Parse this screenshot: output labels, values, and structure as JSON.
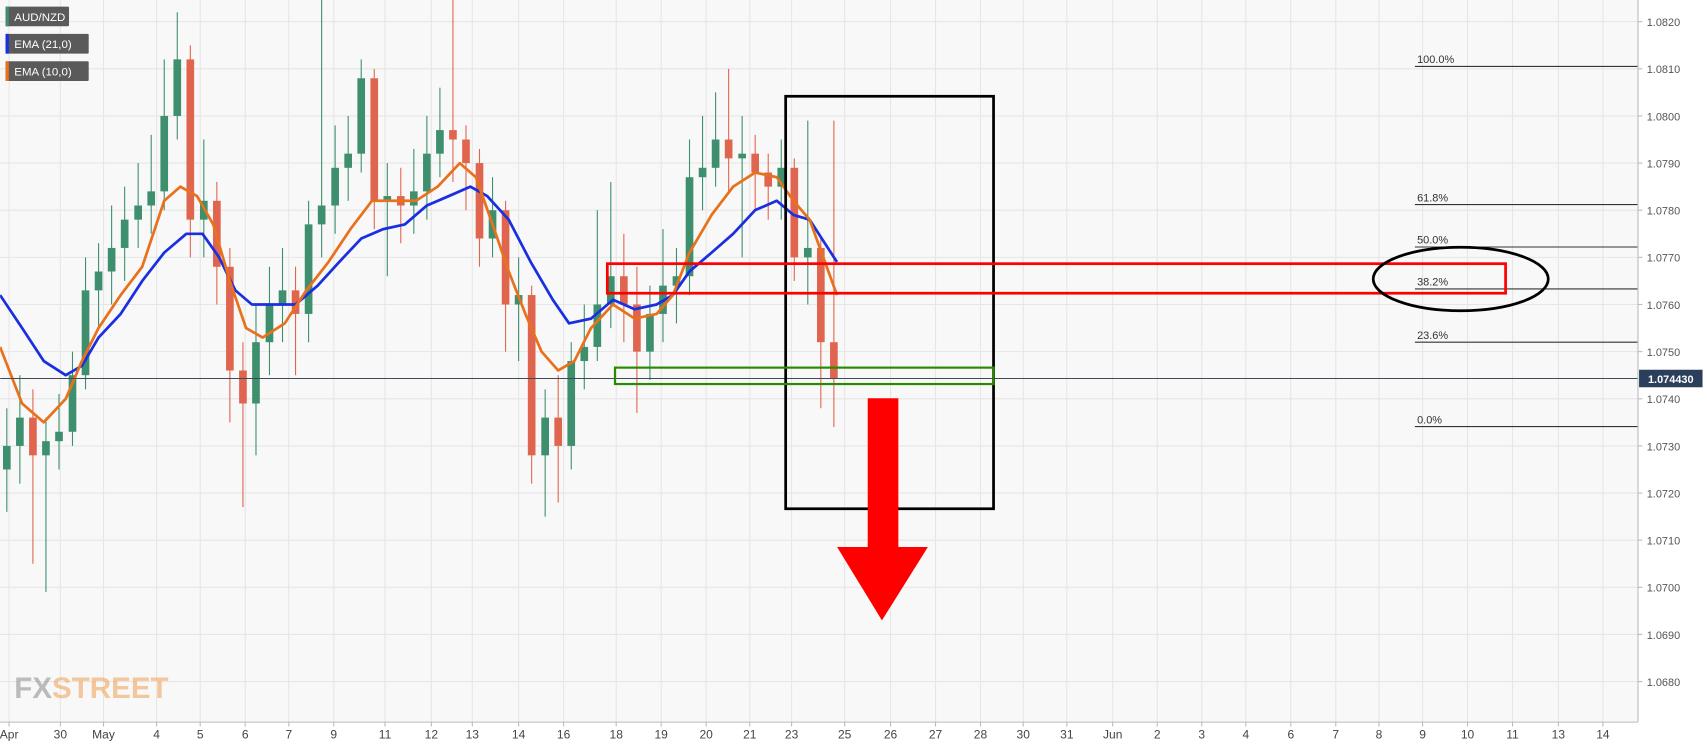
{
  "chart_data": {
    "type": "candlestick",
    "symbol": "AUD/NZD",
    "up_color": "#3d8f6e",
    "down_color": "#e0654f",
    "grid": true,
    "xlim": [
      0,
      36.42
    ],
    "ylim": [
      1.06714,
      1.08246
    ],
    "yticks": [
      {
        "value": 1.082,
        "label": "1.0820"
      },
      {
        "value": 1.081,
        "label": "1.0810"
      },
      {
        "value": 1.08,
        "label": "1.0800"
      },
      {
        "value": 1.079,
        "label": "1.0790"
      },
      {
        "value": 1.078,
        "label": "1.0780"
      },
      {
        "value": 1.077,
        "label": "1.0770"
      },
      {
        "value": 1.076,
        "label": "1.0760"
      },
      {
        "value": 1.075,
        "label": "1.0750"
      },
      {
        "value": 1.074,
        "label": "1.0740"
      },
      {
        "value": 1.073,
        "label": "1.0730"
      },
      {
        "value": 1.072,
        "label": "1.0720"
      },
      {
        "value": 1.071,
        "label": "1.0710"
      },
      {
        "value": 1.07,
        "label": "1.0700"
      },
      {
        "value": 1.069,
        "label": "1.0690"
      },
      {
        "value": 1.068,
        "label": "1.0680"
      }
    ],
    "xticks": [
      {
        "value": 0.2,
        "label": "Apr"
      },
      {
        "value": 1.34,
        "label": "30"
      },
      {
        "value": 2.3,
        "label": "May"
      },
      {
        "value": 3.48,
        "label": "4"
      },
      {
        "value": 4.45,
        "label": "5"
      },
      {
        "value": 5.45,
        "label": "6"
      },
      {
        "value": 6.42,
        "label": "7"
      },
      {
        "value": 7.42,
        "label": "9"
      },
      {
        "value": 8.56,
        "label": "11"
      },
      {
        "value": 9.59,
        "label": "12"
      },
      {
        "value": 10.5,
        "label": "13"
      },
      {
        "value": 11.53,
        "label": "14"
      },
      {
        "value": 12.53,
        "label": "16"
      },
      {
        "value": 13.7,
        "label": "18"
      },
      {
        "value": 14.7,
        "label": "19"
      },
      {
        "value": 15.7,
        "label": "20"
      },
      {
        "value": 16.67,
        "label": "21"
      },
      {
        "value": 17.6,
        "label": "23"
      },
      {
        "value": 18.78,
        "label": "25"
      },
      {
        "value": 19.8,
        "label": "26"
      },
      {
        "value": 20.8,
        "label": "27"
      },
      {
        "value": 21.8,
        "label": "28"
      },
      {
        "value": 22.75,
        "label": "30"
      },
      {
        "value": 23.72,
        "label": "31"
      },
      {
        "value": 24.74,
        "label": "Jun"
      },
      {
        "value": 25.73,
        "label": "2"
      },
      {
        "value": 26.72,
        "label": "3"
      },
      {
        "value": 27.7,
        "label": "4"
      },
      {
        "value": 28.7,
        "label": "6"
      },
      {
        "value": 29.7,
        "label": "7"
      },
      {
        "value": 30.66,
        "label": "8"
      },
      {
        "value": 31.63,
        "label": "9"
      },
      {
        "value": 32.63,
        "label": "10"
      },
      {
        "value": 33.63,
        "label": "11"
      },
      {
        "value": 34.65,
        "label": "13"
      },
      {
        "value": 35.64,
        "label": "14"
      }
    ],
    "x": [
      0.15,
      0.44,
      0.73,
      1.02,
      1.31,
      1.61,
      1.9,
      2.19,
      2.48,
      2.77,
      3.07,
      3.36,
      3.65,
      3.94,
      4.23,
      4.53,
      4.82,
      5.11,
      5.4,
      5.69,
      5.99,
      6.28,
      6.57,
      6.86,
      7.15,
      7.45,
      7.74,
      8.03,
      8.32,
      8.61,
      8.91,
      9.2,
      9.49,
      9.78,
      10.07,
      10.36,
      10.66,
      10.95,
      11.24,
      11.53,
      11.82,
      12.12,
      12.41,
      12.7,
      12.99,
      13.28,
      13.58,
      13.87,
      14.16,
      14.45,
      14.74,
      15.04,
      15.33,
      15.62,
      15.91,
      16.2,
      16.5,
      16.79,
      17.08,
      17.37,
      17.66,
      17.96,
      18.25,
      18.54
    ],
    "open": [
      1.0725,
      1.073,
      1.0736,
      1.0728,
      1.0731,
      1.0733,
      1.0745,
      1.0763,
      1.0767,
      1.0772,
      1.0778,
      1.0781,
      1.0784,
      1.08,
      1.0812,
      1.0778,
      1.0782,
      1.0768,
      1.0746,
      1.0739,
      1.0752,
      1.076,
      1.0763,
      1.0758,
      1.0777,
      1.0781,
      1.0789,
      1.0792,
      1.0808,
      1.0782,
      1.0783,
      1.0781,
      1.0784,
      1.0792,
      1.0797,
      1.0795,
      1.079,
      1.0774,
      1.078,
      1.076,
      1.0762,
      1.0728,
      1.0736,
      1.073,
      1.0748,
      1.0751,
      1.076,
      1.0766,
      1.076,
      1.075,
      1.0758,
      1.0764,
      1.0766,
      1.0787,
      1.0789,
      1.0795,
      1.0791,
      1.0792,
      1.0788,
      1.0785,
      1.0789,
      1.077,
      1.0772,
      1.0752
    ],
    "high": [
      1.0738,
      1.0745,
      1.0742,
      1.0736,
      1.0741,
      1.075,
      1.077,
      1.0773,
      1.0781,
      1.0785,
      1.079,
      1.0796,
      1.0812,
      1.0822,
      1.0815,
      1.0795,
      1.0786,
      1.0772,
      1.0752,
      1.076,
      1.0768,
      1.0772,
      1.0768,
      1.0782,
      1.0825,
      1.0798,
      1.08,
      1.0812,
      1.081,
      1.079,
      1.0789,
      1.0793,
      1.08,
      1.0806,
      1.0825,
      1.0798,
      1.0793,
      1.0787,
      1.0782,
      1.077,
      1.0764,
      1.0742,
      1.0745,
      1.0752,
      1.076,
      1.078,
      1.0786,
      1.0775,
      1.0768,
      1.0764,
      1.0776,
      1.0772,
      1.0795,
      1.08,
      1.0805,
      1.081,
      1.08,
      1.0796,
      1.0792,
      1.0795,
      1.0791,
      1.0799,
      1.0774,
      1.0799
    ],
    "low": [
      1.0716,
      1.0722,
      1.0705,
      1.0699,
      1.0725,
      1.073,
      1.0742,
      1.0755,
      1.076,
      1.0765,
      1.0772,
      1.0775,
      1.078,
      1.0795,
      1.077,
      1.077,
      1.076,
      1.0735,
      1.0717,
      1.0728,
      1.0745,
      1.0752,
      1.0745,
      1.0752,
      1.077,
      1.0775,
      1.0782,
      1.0788,
      1.0776,
      1.0766,
      1.0773,
      1.0775,
      1.0778,
      1.0787,
      1.0786,
      1.078,
      1.0768,
      1.077,
      1.075,
      1.0748,
      1.0722,
      1.0715,
      1.0718,
      1.0725,
      1.0742,
      1.0748,
      1.0755,
      1.0752,
      1.0737,
      1.0744,
      1.0752,
      1.0756,
      1.0762,
      1.078,
      1.0785,
      1.0784,
      1.077,
      1.078,
      1.0778,
      1.0778,
      1.0765,
      1.076,
      1.0738,
      1.0734
    ],
    "close": [
      1.073,
      1.0736,
      1.0728,
      1.0731,
      1.0733,
      1.0745,
      1.0763,
      1.0767,
      1.0772,
      1.0778,
      1.0781,
      1.0784,
      1.08,
      1.0812,
      1.0778,
      1.0782,
      1.0768,
      1.0746,
      1.0739,
      1.0752,
      1.076,
      1.0763,
      1.0758,
      1.0777,
      1.0781,
      1.0789,
      1.0792,
      1.0808,
      1.0782,
      1.0783,
      1.0781,
      1.0784,
      1.0792,
      1.0797,
      1.0795,
      1.079,
      1.0774,
      1.078,
      1.076,
      1.0762,
      1.0728,
      1.0736,
      1.073,
      1.0748,
      1.0751,
      1.076,
      1.0766,
      1.076,
      1.075,
      1.0758,
      1.0764,
      1.0766,
      1.0787,
      1.0789,
      1.0795,
      1.0791,
      1.0792,
      1.0788,
      1.0785,
      1.0789,
      1.077,
      1.0772,
      1.0752,
      1.07443
    ],
    "indicators": [
      {
        "name": "EMA (21,0)",
        "color": "#1a2fe0",
        "x": [
          0,
          0.49,
          0.97,
          1.46,
          1.82,
          2.19,
          2.68,
          3.16,
          3.65,
          4.14,
          4.5,
          4.87,
          5.23,
          5.6,
          6.08,
          6.57,
          7.06,
          7.54,
          8.03,
          8.52,
          9.0,
          9.49,
          9.98,
          10.46,
          10.83,
          11.31,
          11.8,
          12.29,
          12.65,
          13.14,
          13.63,
          14.11,
          14.6,
          14.96,
          15.33,
          15.82,
          16.3,
          16.79,
          17.27,
          17.64,
          18.0,
          18.61
        ],
        "values": [
          1.0762,
          1.0755,
          1.0748,
          1.0745,
          1.0747,
          1.0753,
          1.0758,
          1.0765,
          1.0771,
          1.0775,
          1.0775,
          1.077,
          1.0763,
          1.076,
          1.076,
          1.076,
          1.0764,
          1.0769,
          1.0774,
          1.0776,
          1.0777,
          1.0781,
          1.0783,
          1.0785,
          1.0783,
          1.0778,
          1.0769,
          1.0761,
          1.0756,
          1.0757,
          1.0761,
          1.0759,
          1.076,
          1.0762,
          1.0767,
          1.0771,
          1.0775,
          1.078,
          1.0782,
          1.0779,
          1.0778,
          1.0769
        ]
      },
      {
        "name": "EMA (10,0)",
        "color": "#e8711c",
        "x": [
          0,
          0.49,
          0.97,
          1.46,
          1.82,
          2.19,
          2.68,
          3.16,
          3.65,
          4.01,
          4.38,
          4.74,
          5.11,
          5.47,
          5.84,
          6.33,
          6.81,
          7.3,
          7.79,
          8.27,
          8.76,
          9.25,
          9.73,
          10.22,
          10.58,
          10.95,
          11.31,
          11.68,
          12.04,
          12.41,
          12.77,
          13.14,
          13.63,
          14.11,
          14.6,
          14.96,
          15.33,
          15.82,
          16.3,
          16.79,
          17.27,
          17.64,
          18.0,
          18.61
        ],
        "values": [
          1.0751,
          1.0739,
          1.0735,
          1.074,
          1.0748,
          1.0755,
          1.0762,
          1.0768,
          1.0782,
          1.0785,
          1.0783,
          1.0777,
          1.0765,
          1.0755,
          1.0753,
          1.0756,
          1.0763,
          1.0769,
          1.0776,
          1.0782,
          1.0782,
          1.0782,
          1.0785,
          1.079,
          1.0787,
          1.0777,
          1.0767,
          1.0758,
          1.075,
          1.0746,
          1.0748,
          1.0755,
          1.076,
          1.0757,
          1.0758,
          1.0762,
          1.0771,
          1.0779,
          1.0785,
          1.0788,
          1.0787,
          1.0782,
          1.0778,
          1.0762
        ]
      }
    ],
    "fibonacci": {
      "labels": [
        "100.0%",
        "61.8%",
        "50.0%",
        "38.2%",
        "23.6%",
        "0.0%"
      ],
      "values": [
        1.08105,
        1.07812,
        1.07722,
        1.07633,
        1.0752,
        1.07341
      ],
      "x_start": 31.46
    },
    "last_price": 1.07443,
    "last_price_label": "1.074430",
    "watermark": [
      "FX",
      "STREET"
    ]
  }
}
